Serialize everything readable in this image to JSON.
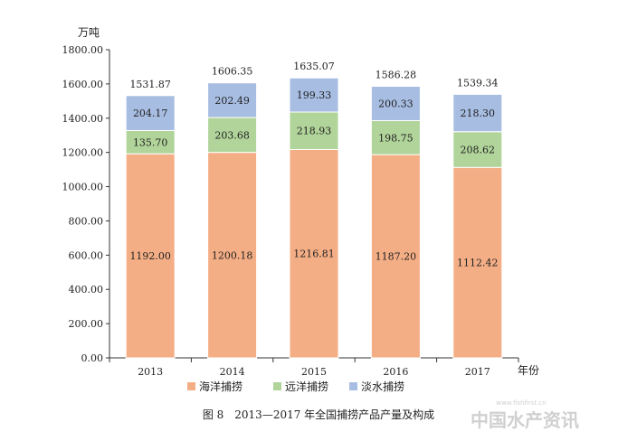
{
  "chart_data": {
    "type": "bar",
    "stacked": true,
    "categories": [
      "2013",
      "2014",
      "2015",
      "2016",
      "2017"
    ],
    "series": [
      {
        "name": "海洋捕捞",
        "color": "#f4ae85",
        "values": [
          1192.0,
          1200.18,
          1216.81,
          1187.2,
          1112.42
        ]
      },
      {
        "name": "远洋捕捞",
        "color": "#b1d49a",
        "values": [
          135.7,
          203.68,
          218.93,
          198.75,
          208.62
        ]
      },
      {
        "name": "淡水捕捞",
        "color": "#a7bde2",
        "values": [
          204.17,
          202.49,
          199.33,
          200.33,
          218.3
        ]
      }
    ],
    "totals": [
      1531.87,
      1606.35,
      1635.07,
      1586.28,
      1539.34
    ],
    "value_labels": [
      [
        "1192.00",
        "1200.18",
        "1216.81",
        "1187.20",
        "1112.42"
      ],
      [
        "135.70",
        "203.68",
        "218.93",
        "198.75",
        "208.62"
      ],
      [
        "204.17",
        "202.49",
        "199.33",
        "200.33",
        "218.30"
      ]
    ],
    "total_labels": [
      "1531.87",
      "1606.35",
      "1635.07",
      "1586.28",
      "1539.34"
    ],
    "ylabel": "万吨",
    "xlabel": "年份",
    "ylim": [
      0,
      1800
    ],
    "yticks": [
      "0.00",
      "200.00",
      "400.00",
      "600.00",
      "800.00",
      "1000.00",
      "1200.00",
      "1400.00",
      "1600.00",
      "1800.00"
    ],
    "grid": false,
    "legend_position": "bottom",
    "caption": "图 8　2013—2017 年全国捕捞产品产量及构成"
  },
  "watermark": {
    "text": "中国水产资讯",
    "url_text": "www.fishfirst.cn"
  }
}
